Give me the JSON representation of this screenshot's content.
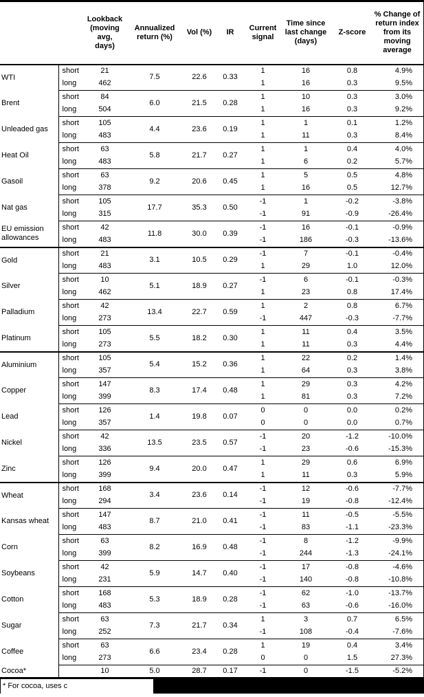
{
  "table": {
    "headers": [
      "",
      "",
      "Lookback\n(moving\navg, days)",
      "Annualized\nreturn (%)",
      "Vol (%)",
      "IR",
      "Current\nsignal",
      "Time since\nlast change\n(days)",
      "Z-score",
      "% Change of\nreturn index\nfrom its\nmoving\naverage"
    ],
    "commodities": [
      {
        "name": "WTI",
        "section_start": false,
        "ann": "7.5",
        "vol": "22.6",
        "ir": "0.33",
        "rows": [
          {
            "label": "short",
            "lookback": "21",
            "signal": "1",
            "time": "16",
            "z": "0.8",
            "pct": "4.9%"
          },
          {
            "label": "long",
            "lookback": "462",
            "signal": "1",
            "time": "16",
            "z": "0.3",
            "pct": "9.5%"
          }
        ]
      },
      {
        "name": "Brent",
        "section_start": false,
        "ann": "6.0",
        "vol": "21.5",
        "ir": "0.28",
        "rows": [
          {
            "label": "short",
            "lookback": "84",
            "signal": "1",
            "time": "10",
            "z": "0.3",
            "pct": "3.0%"
          },
          {
            "label": "long",
            "lookback": "504",
            "signal": "1",
            "time": "16",
            "z": "0.3",
            "pct": "9.2%"
          }
        ]
      },
      {
        "name": "Unleaded gas",
        "section_start": false,
        "ann": "4.4",
        "vol": "23.6",
        "ir": "0.19",
        "rows": [
          {
            "label": "short",
            "lookback": "105",
            "signal": "1",
            "time": "1",
            "z": "0.1",
            "pct": "1.2%"
          },
          {
            "label": "long",
            "lookback": "483",
            "signal": "1",
            "time": "11",
            "z": "0.3",
            "pct": "8.4%"
          }
        ]
      },
      {
        "name": "Heat Oil",
        "section_start": false,
        "ann": "5.8",
        "vol": "21.7",
        "ir": "0.27",
        "rows": [
          {
            "label": "short",
            "lookback": "63",
            "signal": "1",
            "time": "1",
            "z": "0.4",
            "pct": "4.0%"
          },
          {
            "label": "long",
            "lookback": "483",
            "signal": "1",
            "time": "6",
            "z": "0.2",
            "pct": "5.7%"
          }
        ]
      },
      {
        "name": "Gasoil",
        "section_start": false,
        "ann": "9.2",
        "vol": "20.6",
        "ir": "0.45",
        "rows": [
          {
            "label": "short",
            "lookback": "63",
            "signal": "1",
            "time": "5",
            "z": "0.5",
            "pct": "4.8%"
          },
          {
            "label": "long",
            "lookback": "378",
            "signal": "1",
            "time": "16",
            "z": "0.5",
            "pct": "12.7%"
          }
        ]
      },
      {
        "name": "Nat gas",
        "section_start": false,
        "ann": "17.7",
        "vol": "35.3",
        "ir": "0.50",
        "rows": [
          {
            "label": "short",
            "lookback": "105",
            "signal": "-1",
            "time": "1",
            "z": "-0.2",
            "pct": "-3.8%"
          },
          {
            "label": "long",
            "lookback": "315",
            "signal": "-1",
            "time": "91",
            "z": "-0.9",
            "pct": "-26.4%"
          }
        ]
      },
      {
        "name": "EU emission allowances",
        "section_start": false,
        "ann": "11.8",
        "vol": "30.0",
        "ir": "0.39",
        "rows": [
          {
            "label": "short",
            "lookback": "42",
            "signal": "-1",
            "time": "16",
            "z": "-0.1",
            "pct": "-0.9%"
          },
          {
            "label": "long",
            "lookback": "483",
            "signal": "-1",
            "time": "186",
            "z": "-0.3",
            "pct": "-13.6%"
          }
        ]
      },
      {
        "name": "Gold",
        "section_start": true,
        "ann": "3.1",
        "vol": "10.5",
        "ir": "0.29",
        "rows": [
          {
            "label": "short",
            "lookback": "21",
            "signal": "-1",
            "time": "7",
            "z": "-0.1",
            "pct": "-0.4%"
          },
          {
            "label": "long",
            "lookback": "483",
            "signal": "1",
            "time": "29",
            "z": "1.0",
            "pct": "12.0%"
          }
        ]
      },
      {
        "name": "Silver",
        "section_start": false,
        "ann": "5.1",
        "vol": "18.9",
        "ir": "0.27",
        "rows": [
          {
            "label": "short",
            "lookback": "10",
            "signal": "-1",
            "time": "6",
            "z": "-0.1",
            "pct": "-0.3%"
          },
          {
            "label": "long",
            "lookback": "462",
            "signal": "1",
            "time": "23",
            "z": "0.8",
            "pct": "17.4%"
          }
        ]
      },
      {
        "name": "Palladium",
        "section_start": false,
        "ann": "13.4",
        "vol": "22.7",
        "ir": "0.59",
        "rows": [
          {
            "label": "short",
            "lookback": "42",
            "signal": "1",
            "time": "2",
            "z": "0.8",
            "pct": "6.7%"
          },
          {
            "label": "long",
            "lookback": "273",
            "signal": "-1",
            "time": "447",
            "z": "-0.3",
            "pct": "-7.7%"
          }
        ]
      },
      {
        "name": "Platinum",
        "section_start": false,
        "ann": "5.5",
        "vol": "18.2",
        "ir": "0.30",
        "rows": [
          {
            "label": "short",
            "lookback": "105",
            "signal": "1",
            "time": "11",
            "z": "0.4",
            "pct": "3.5%"
          },
          {
            "label": "long",
            "lookback": "273",
            "signal": "1",
            "time": "11",
            "z": "0.3",
            "pct": "4.4%"
          }
        ]
      },
      {
        "name": "Aluminium",
        "section_start": true,
        "ann": "5.4",
        "vol": "15.2",
        "ir": "0.36",
        "rows": [
          {
            "label": "short",
            "lookback": "105",
            "signal": "1",
            "time": "22",
            "z": "0.2",
            "pct": "1.4%"
          },
          {
            "label": "long",
            "lookback": "357",
            "signal": "1",
            "time": "64",
            "z": "0.3",
            "pct": "3.8%"
          }
        ]
      },
      {
        "name": "Copper",
        "section_start": false,
        "ann": "8.3",
        "vol": "17.4",
        "ir": "0.48",
        "rows": [
          {
            "label": "short",
            "lookback": "147",
            "signal": "1",
            "time": "29",
            "z": "0.3",
            "pct": "4.2%"
          },
          {
            "label": "long",
            "lookback": "399",
            "signal": "1",
            "time": "81",
            "z": "0.3",
            "pct": "7.2%"
          }
        ]
      },
      {
        "name": "Lead",
        "section_start": false,
        "ann": "1.4",
        "vol": "19.8",
        "ir": "0.07",
        "rows": [
          {
            "label": "short",
            "lookback": "126",
            "signal": "0",
            "time": "0",
            "z": "0.0",
            "pct": "0.2%"
          },
          {
            "label": "long",
            "lookback": "357",
            "signal": "0",
            "time": "0",
            "z": "0.0",
            "pct": "0.7%"
          }
        ]
      },
      {
        "name": "Nickel",
        "section_start": false,
        "ann": "13.5",
        "vol": "23.5",
        "ir": "0.57",
        "rows": [
          {
            "label": "short",
            "lookback": "42",
            "signal": "-1",
            "time": "20",
            "z": "-1.2",
            "pct": "-10.0%"
          },
          {
            "label": "long",
            "lookback": "336",
            "signal": "-1",
            "time": "23",
            "z": "-0.6",
            "pct": "-15.3%"
          }
        ]
      },
      {
        "name": "Zinc",
        "section_start": false,
        "ann": "9.4",
        "vol": "20.0",
        "ir": "0.47",
        "rows": [
          {
            "label": "short",
            "lookback": "126",
            "signal": "1",
            "time": "29",
            "z": "0.6",
            "pct": "6.9%"
          },
          {
            "label": "long",
            "lookback": "399",
            "signal": "1",
            "time": "11",
            "z": "0.3",
            "pct": "5.9%"
          }
        ]
      },
      {
        "name": "Wheat",
        "section_start": true,
        "ann": "3.4",
        "vol": "23.6",
        "ir": "0.14",
        "rows": [
          {
            "label": "short",
            "lookback": "168",
            "signal": "-1",
            "time": "12",
            "z": "-0.6",
            "pct": "-7.7%"
          },
          {
            "label": "long",
            "lookback": "294",
            "signal": "-1",
            "time": "19",
            "z": "-0.8",
            "pct": "-12.4%"
          }
        ]
      },
      {
        "name": "Kansas wheat",
        "section_start": false,
        "ann": "8.7",
        "vol": "21.0",
        "ir": "0.41",
        "rows": [
          {
            "label": "short",
            "lookback": "147",
            "signal": "-1",
            "time": "11",
            "z": "-0.5",
            "pct": "-5.5%"
          },
          {
            "label": "long",
            "lookback": "483",
            "signal": "-1",
            "time": "83",
            "z": "-1.1",
            "pct": "-23.3%"
          }
        ]
      },
      {
        "name": "Corn",
        "section_start": false,
        "ann": "8.2",
        "vol": "16.9",
        "ir": "0.48",
        "rows": [
          {
            "label": "short",
            "lookback": "63",
            "signal": "-1",
            "time": "8",
            "z": "-1.2",
            "pct": "-9.9%"
          },
          {
            "label": "long",
            "lookback": "399",
            "signal": "-1",
            "time": "244",
            "z": "-1.3",
            "pct": "-24.1%"
          }
        ]
      },
      {
        "name": "Soybeans",
        "section_start": false,
        "ann": "5.9",
        "vol": "14.7",
        "ir": "0.40",
        "rows": [
          {
            "label": "short",
            "lookback": "42",
            "signal": "-1",
            "time": "17",
            "z": "-0.8",
            "pct": "-4.6%"
          },
          {
            "label": "long",
            "lookback": "231",
            "signal": "-1",
            "time": "140",
            "z": "-0.8",
            "pct": "-10.8%"
          }
        ]
      },
      {
        "name": "Cotton",
        "section_start": false,
        "ann": "5.3",
        "vol": "18.9",
        "ir": "0.28",
        "rows": [
          {
            "label": "short",
            "lookback": "168",
            "signal": "-1",
            "time": "62",
            "z": "-1.0",
            "pct": "-13.7%"
          },
          {
            "label": "long",
            "lookback": "483",
            "signal": "-1",
            "time": "63",
            "z": "-0.6",
            "pct": "-16.0%"
          }
        ]
      },
      {
        "name": "Sugar",
        "section_start": false,
        "ann": "7.3",
        "vol": "21.7",
        "ir": "0.34",
        "rows": [
          {
            "label": "short",
            "lookback": "63",
            "signal": "1",
            "time": "3",
            "z": "0.7",
            "pct": "6.5%"
          },
          {
            "label": "long",
            "lookback": "252",
            "signal": "-1",
            "time": "108",
            "z": "-0.4",
            "pct": "-7.6%"
          }
        ]
      },
      {
        "name": "Coffee",
        "section_start": false,
        "ann": "6.6",
        "vol": "23.4",
        "ir": "0.28",
        "rows": [
          {
            "label": "short",
            "lookback": "63",
            "signal": "1",
            "time": "19",
            "z": "0.4",
            "pct": "3.4%"
          },
          {
            "label": "long",
            "lookback": "273",
            "signal": "0",
            "time": "0",
            "z": "1.5",
            "pct": "27.3%"
          }
        ]
      },
      {
        "name": "Cocoa*",
        "section_start": false,
        "ann": "5.0",
        "vol": "28.7",
        "ir": "0.17",
        "rows": [
          {
            "label": "",
            "lookback": "10",
            "signal": "-1",
            "time": "0",
            "z": "-1.5",
            "pct": "-5.2%"
          }
        ]
      }
    ]
  },
  "footnote": {
    "text": "* For cocoa, uses c"
  },
  "colors": {
    "text": "#000000",
    "rule": "#000000",
    "background": "#ffffff",
    "redaction": "#000000"
  }
}
